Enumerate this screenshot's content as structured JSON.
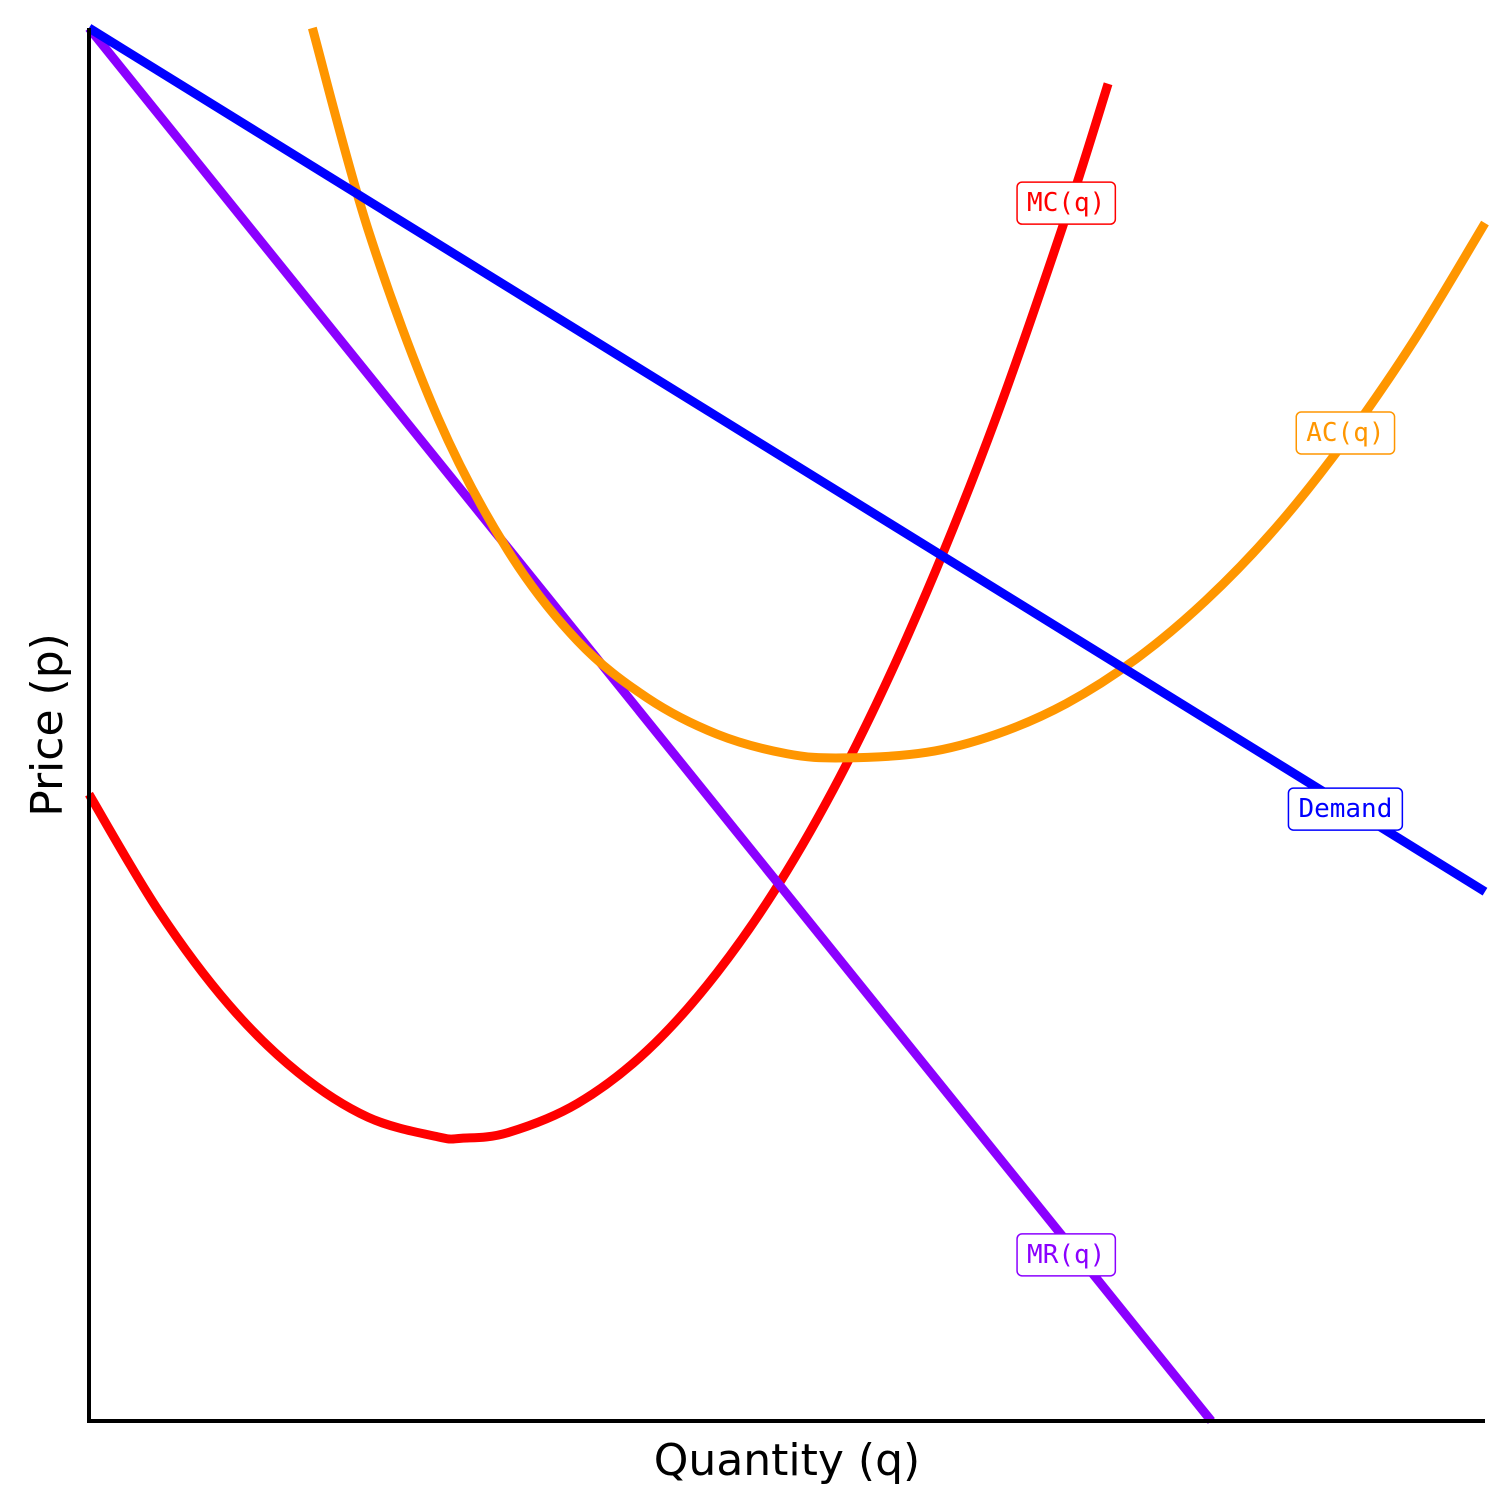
{
  "chart_data": {
    "type": "line",
    "title": "",
    "xlabel": "Quantity (q)",
    "ylabel": "Price (p)",
    "xlim": [
      0,
      10
    ],
    "ylim": [
      0,
      10
    ],
    "grid": false,
    "legend": "none",
    "series": [
      {
        "name": "Demand",
        "color": "#0000ff",
        "x": [
          0,
          10
        ],
        "y": [
          10,
          3.8
        ]
      },
      {
        "name": "MR(q)",
        "color": "#8b00ff",
        "x": [
          0,
          8.04
        ],
        "y": [
          10,
          0
        ]
      },
      {
        "name": "MC(q)",
        "color": "#ff0000",
        "x": [
          0,
          0.5,
          1.0,
          1.5,
          2.0,
          2.5,
          2.67,
          3.0,
          3.5,
          4.0,
          4.5,
          5.0,
          5.5,
          6.0,
          6.5,
          7.0,
          7.3
        ],
        "y": [
          4.5,
          3.66,
          2.99,
          2.5,
          2.18,
          2.04,
          2.03,
          2.07,
          2.28,
          2.66,
          3.22,
          3.95,
          4.86,
          5.95,
          7.21,
          8.65,
          9.6
        ]
      },
      {
        "name": "AC(q)",
        "color": "#ff9600",
        "x": [
          1.6,
          2.0,
          2.5,
          3.0,
          3.5,
          4.0,
          4.5,
          5.0,
          5.4,
          6.0,
          6.5,
          7.0,
          7.5,
          8.0,
          8.5,
          9.0,
          9.5,
          10.0
        ],
        "y": [
          10.0,
          8.55,
          7.2,
          6.25,
          5.6,
          5.19,
          4.93,
          4.79,
          4.76,
          4.8,
          4.93,
          5.15,
          5.47,
          5.89,
          6.41,
          7.04,
          7.77,
          8.6
        ]
      }
    ],
    "labels": [
      {
        "text": "MC(q)",
        "x": 7.0,
        "y": 8.75,
        "color": "#ff0000"
      },
      {
        "text": "AC(q)",
        "x": 9.0,
        "y": 7.1,
        "color": "#ff9600"
      },
      {
        "text": "Demand",
        "x": 9.0,
        "y": 4.4,
        "color": "#0000ff"
      },
      {
        "text": "MR(q)",
        "x": 7.0,
        "y": 1.2,
        "color": "#8b00ff"
      }
    ]
  }
}
